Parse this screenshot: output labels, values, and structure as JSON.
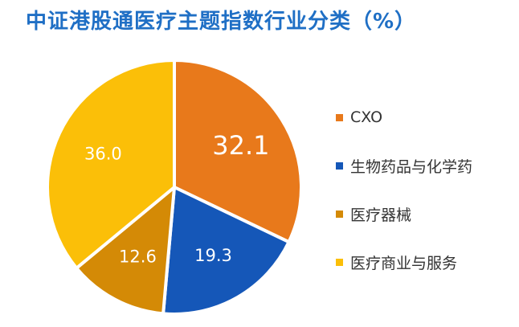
{
  "chart_data": {
    "type": "pie",
    "title": "中证港股通医疗主题指数行业分类（%）",
    "slices": [
      {
        "label": "CXO",
        "value": 32.1,
        "value_label": "32.1",
        "color": "#e8791b"
      },
      {
        "label": "生物药品与化学药",
        "value": 19.3,
        "value_label": "19.3",
        "color": "#1557b8"
      },
      {
        "label": "医疗器械",
        "value": 12.6,
        "value_label": "12.6",
        "color": "#d48a06"
      },
      {
        "label": "医疗商业与服务",
        "value": 36.0,
        "value_label": "36.0",
        "color": "#fbbf08"
      }
    ],
    "start_angle_deg": 0,
    "direction": "clockwise",
    "legend_position": "right",
    "colors": {
      "title": "#1f6fc5",
      "data_label": "#ffffff",
      "separator": "#ffffff"
    }
  }
}
